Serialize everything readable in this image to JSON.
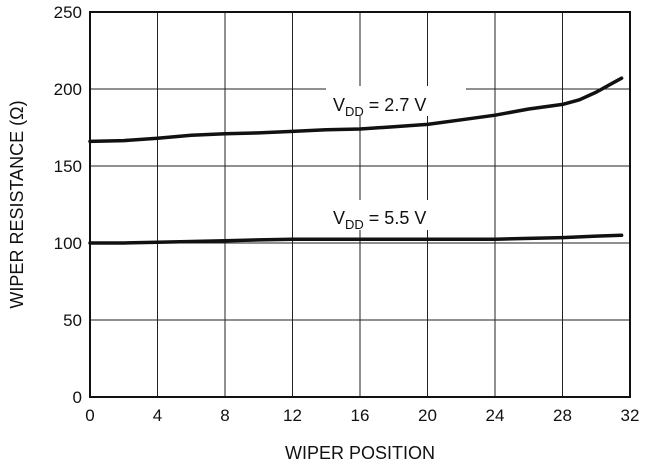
{
  "chart_data": {
    "type": "line",
    "xlabel": "WIPER POSITION",
    "ylabel": "WIPER RESISTANCE (Ω)",
    "xlim": [
      0,
      32
    ],
    "ylim": [
      0,
      250
    ],
    "x_ticks": [
      0,
      4,
      8,
      12,
      16,
      20,
      24,
      28,
      32
    ],
    "y_ticks": [
      0,
      50,
      100,
      150,
      200,
      250
    ],
    "grid": true,
    "series": [
      {
        "name": "VDD = 2.7 V",
        "label_main": "V",
        "label_sub": "DD",
        "label_rest": " = 2.7 V",
        "x": [
          0,
          2,
          4,
          6,
          8,
          10,
          12,
          14,
          16,
          18,
          20,
          22,
          24,
          26,
          28,
          29,
          30,
          31,
          31.5
        ],
        "y": [
          166,
          166.5,
          168,
          170,
          171,
          171.5,
          172.5,
          173.5,
          174,
          175.5,
          177,
          180,
          183,
          187,
          190,
          193,
          198,
          204,
          207
        ]
      },
      {
        "name": "VDD = 5.5 V",
        "label_main": "V",
        "label_sub": "DD",
        "label_rest": " = 5.5 V",
        "x": [
          0,
          2,
          4,
          6,
          8,
          10,
          12,
          14,
          16,
          18,
          20,
          22,
          24,
          26,
          28,
          30,
          31.5
        ],
        "y": [
          100,
          100,
          100.5,
          101,
          101.5,
          102,
          102.5,
          102.5,
          102.5,
          102.5,
          102.5,
          102.5,
          102.5,
          103,
          103.5,
          104.5,
          105
        ]
      }
    ]
  }
}
